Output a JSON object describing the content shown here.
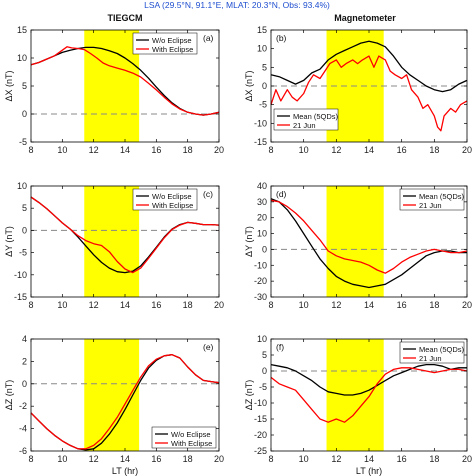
{
  "figure": {
    "suptitle": "LSA (29.5°N, 91.1°E, MLAT: 20.3°N, Obs: 93.4%)",
    "col_titles": [
      "TIEGCM",
      "Magnetometer"
    ],
    "eclipse_color": "#ffff00",
    "zero_line_color": "#888888"
  },
  "chart_data": [
    {
      "id": "a",
      "panel_label": "(a)",
      "type": "line",
      "title": "TIEGCM",
      "xlabel": "",
      "ylabel": "ΔX (nT)",
      "xlim": [
        8,
        20
      ],
      "ylim": [
        -5,
        15
      ],
      "xticks": [
        8,
        10,
        12,
        14,
        16,
        18,
        20
      ],
      "yticks": [
        -5,
        0,
        5,
        10,
        15
      ],
      "eclipse_band": [
        11.4,
        14.9
      ],
      "legend": "top-right",
      "series": [
        {
          "name": "W/o Eclipse",
          "color": "#000000",
          "x": [
            8,
            8.5,
            9,
            9.5,
            10,
            10.5,
            11,
            11.5,
            12,
            12.5,
            13,
            13.5,
            14,
            14.5,
            15,
            15.5,
            16,
            16.5,
            17,
            17.5,
            18,
            18.5,
            19,
            19.5,
            20
          ],
          "y": [
            8.8,
            9.2,
            9.8,
            10.4,
            11.0,
            11.4,
            11.7,
            11.9,
            11.9,
            11.7,
            11.3,
            10.8,
            10.0,
            9.0,
            7.8,
            6.4,
            4.8,
            3.3,
            2.0,
            1.0,
            0.3,
            0.0,
            -0.2,
            0.0,
            0.3
          ]
        },
        {
          "name": "With Eclipse",
          "color": "#ff0000",
          "x": [
            8,
            8.5,
            9,
            9.5,
            10,
            10.3,
            10.6,
            11,
            11.4,
            11.8,
            12.2,
            12.6,
            13,
            13.5,
            14,
            14.5,
            15,
            15.5,
            16,
            16.5,
            17,
            17.5,
            18,
            18.5,
            19,
            19.5,
            20
          ],
          "y": [
            8.8,
            9.2,
            9.8,
            10.4,
            11.4,
            12.0,
            11.8,
            11.7,
            11.5,
            10.8,
            10.0,
            9.1,
            8.6,
            8.2,
            7.8,
            7.3,
            6.6,
            5.5,
            4.3,
            3.0,
            1.8,
            0.9,
            0.3,
            0.0,
            -0.2,
            0.0,
            0.3
          ]
        }
      ]
    },
    {
      "id": "b",
      "panel_label": "(b)",
      "type": "line",
      "title": "Magnetometer",
      "xlabel": "",
      "ylabel": "ΔX (nT)",
      "xlim": [
        8,
        20
      ],
      "ylim": [
        -15,
        15
      ],
      "xticks": [
        8,
        10,
        12,
        14,
        16,
        18,
        20
      ],
      "yticks": [
        -15,
        -10,
        -5,
        0,
        5,
        10,
        15
      ],
      "eclipse_band": [
        11.4,
        14.9
      ],
      "legend": "lower-left",
      "series": [
        {
          "name": "Mean (5QDs)",
          "color": "#000000",
          "x": [
            8,
            8.5,
            9,
            9.5,
            10,
            10.5,
            11,
            11.5,
            12,
            12.5,
            13,
            13.5,
            14,
            14.5,
            15,
            15.5,
            16,
            16.5,
            17,
            17.5,
            18,
            18.5,
            19,
            19.5,
            20
          ],
          "y": [
            3,
            2.5,
            1.5,
            0.5,
            1.5,
            3.5,
            4.5,
            7,
            8.5,
            9.5,
            10.5,
            11.5,
            12,
            11.5,
            10.5,
            8,
            5,
            3,
            1.5,
            0,
            -1,
            -1.5,
            -1,
            0.5,
            1.5
          ]
        },
        {
          "name": "21 Jun",
          "color": "#ff0000",
          "x": [
            8,
            8.3,
            8.6,
            9,
            9.3,
            9.6,
            10,
            10.3,
            10.6,
            11,
            11.3,
            11.6,
            12,
            12.3,
            12.6,
            13,
            13.3,
            13.6,
            14,
            14.3,
            14.6,
            15,
            15.3,
            15.6,
            16,
            16.3,
            16.6,
            17,
            17.3,
            17.6,
            18,
            18.2,
            18.4,
            18.6,
            19,
            19.3,
            19.6,
            20
          ],
          "y": [
            -5,
            -1,
            -4,
            -1,
            -3,
            -4,
            -2,
            1,
            3,
            2,
            4,
            6,
            7,
            5,
            6,
            7,
            6,
            7,
            8,
            5,
            8,
            7,
            4,
            3,
            2,
            3,
            -1,
            -3,
            -6,
            -5,
            -8,
            -11,
            -12,
            -8,
            -6,
            -7,
            -5,
            -4
          ]
        }
      ]
    },
    {
      "id": "c",
      "panel_label": "(c)",
      "type": "line",
      "title": "",
      "xlabel": "",
      "ylabel": "ΔY (nT)",
      "xlim": [
        8,
        20
      ],
      "ylim": [
        -15,
        10
      ],
      "xticks": [
        8,
        10,
        12,
        14,
        16,
        18,
        20
      ],
      "yticks": [
        -15,
        -10,
        -5,
        0,
        5,
        10
      ],
      "eclipse_band": [
        11.4,
        14.9
      ],
      "legend": "top-right",
      "series": [
        {
          "name": "W/o Eclipse",
          "color": "#000000",
          "x": [
            8,
            8.5,
            9,
            9.5,
            10,
            10.5,
            11,
            11.5,
            12,
            12.5,
            13,
            13.5,
            14,
            14.5,
            15,
            15.5,
            16,
            16.5,
            17,
            17.5,
            18,
            18.5,
            19,
            19.5,
            20
          ],
          "y": [
            7.5,
            6.3,
            4.9,
            3.3,
            1.7,
            0.3,
            -1.5,
            -3.5,
            -5.5,
            -7.2,
            -8.5,
            -9.3,
            -9.5,
            -9.2,
            -8.0,
            -6.0,
            -3.8,
            -1.5,
            0.3,
            1.3,
            1.8,
            1.6,
            1.3,
            1.3,
            1.2
          ]
        },
        {
          "name": "With Eclipse",
          "color": "#ff0000",
          "x": [
            8,
            8.5,
            9,
            9.5,
            10,
            10.5,
            11,
            11.5,
            12,
            12.5,
            13,
            13.5,
            14,
            14.5,
            15,
            15.5,
            16,
            16.5,
            17,
            17.5,
            18,
            18.5,
            19,
            19.5,
            20
          ],
          "y": [
            7.5,
            6.3,
            4.9,
            3.3,
            1.7,
            0.3,
            -1.2,
            -2.3,
            -3.0,
            -3.4,
            -4.8,
            -7.0,
            -8.7,
            -9.5,
            -8.5,
            -6.3,
            -4.0,
            -1.7,
            0.2,
            1.2,
            1.8,
            1.6,
            1.3,
            1.3,
            1.2
          ]
        }
      ]
    },
    {
      "id": "d",
      "panel_label": "(d)",
      "type": "line",
      "title": "",
      "xlabel": "",
      "ylabel": "ΔY (nT)",
      "xlim": [
        8,
        20
      ],
      "ylim": [
        -30,
        40
      ],
      "xticks": [
        8,
        10,
        12,
        14,
        16,
        18,
        20
      ],
      "yticks": [
        -30,
        -20,
        -10,
        0,
        10,
        20,
        30,
        40
      ],
      "eclipse_band": [
        11.4,
        14.9
      ],
      "legend": "top-right",
      "series": [
        {
          "name": "Mean (5QDs)",
          "color": "#000000",
          "x": [
            8,
            8.5,
            9,
            9.5,
            10,
            10.5,
            11,
            11.5,
            12,
            12.5,
            13,
            13.5,
            14,
            14.5,
            15,
            15.5,
            16,
            16.5,
            17,
            17.5,
            18,
            18.5,
            19,
            19.5,
            20
          ],
          "y": [
            32,
            30,
            25,
            18,
            10,
            2,
            -6,
            -12,
            -17,
            -20,
            -22,
            -23,
            -24,
            -23,
            -22,
            -19,
            -16,
            -12,
            -8,
            -4,
            -2,
            -1,
            -1,
            -2,
            -2
          ]
        },
        {
          "name": "21 Jun",
          "color": "#ff0000",
          "x": [
            8,
            8.5,
            9,
            9.5,
            10,
            10.5,
            11,
            11.5,
            12,
            12.5,
            13,
            13.5,
            14,
            14.5,
            15,
            15.5,
            16,
            16.5,
            17,
            17.5,
            18,
            18.5,
            19,
            19.5,
            20
          ],
          "y": [
            31,
            30,
            27,
            23,
            18,
            12,
            6,
            -1,
            -4,
            -6,
            -7,
            -8,
            -10,
            -13,
            -15,
            -12,
            -8,
            -5,
            -3,
            -1,
            0,
            -1,
            -2,
            -2,
            -1
          ]
        }
      ]
    },
    {
      "id": "e",
      "panel_label": "(e)",
      "type": "line",
      "title": "",
      "xlabel": "LT (hr)",
      "ylabel": "ΔZ (nT)",
      "xlim": [
        8,
        20
      ],
      "ylim": [
        -6,
        4
      ],
      "xticks": [
        8,
        10,
        12,
        14,
        16,
        18,
        20
      ],
      "yticks": [
        -6,
        -4,
        -2,
        0,
        2,
        4
      ],
      "eclipse_band": [
        11.4,
        14.9
      ],
      "legend": "lower-right",
      "series": [
        {
          "name": "W/o Eclipse",
          "color": "#000000",
          "x": [
            8,
            8.5,
            9,
            9.5,
            10,
            10.5,
            11,
            11.5,
            12,
            12.5,
            13,
            13.5,
            14,
            14.5,
            15,
            15.5,
            16,
            16.5,
            17,
            17.5,
            18,
            18.5,
            19,
            19.5,
            20
          ],
          "y": [
            -2.6,
            -3.3,
            -4.0,
            -4.6,
            -5.1,
            -5.5,
            -5.8,
            -5.9,
            -5.8,
            -5.3,
            -4.5,
            -3.5,
            -2.3,
            -1.0,
            0.3,
            1.4,
            2.1,
            2.5,
            2.6,
            2.3,
            1.5,
            0.8,
            0.3,
            0.2,
            0.1
          ]
        },
        {
          "name": "With Eclipse",
          "color": "#ff0000",
          "x": [
            8,
            8.5,
            9,
            9.5,
            10,
            10.5,
            11,
            11.5,
            12,
            12.5,
            13,
            13.5,
            14,
            14.5,
            15,
            15.5,
            16,
            16.5,
            17,
            17.5,
            18,
            18.5,
            19,
            19.5,
            20
          ],
          "y": [
            -2.6,
            -3.3,
            -4.0,
            -4.6,
            -5.1,
            -5.5,
            -5.8,
            -5.8,
            -5.5,
            -4.9,
            -4.0,
            -3.0,
            -1.8,
            -0.6,
            0.6,
            1.6,
            2.2,
            2.5,
            2.6,
            2.3,
            1.5,
            0.8,
            0.3,
            0.2,
            0.1
          ]
        }
      ]
    },
    {
      "id": "f",
      "panel_label": "(f)",
      "type": "line",
      "title": "",
      "xlabel": "LT (hr)",
      "ylabel": "ΔZ (nT)",
      "xlim": [
        8,
        20
      ],
      "ylim": [
        -25,
        10
      ],
      "xticks": [
        8,
        10,
        12,
        14,
        16,
        18,
        20
      ],
      "yticks": [
        -25,
        -20,
        -15,
        -10,
        -5,
        0,
        5,
        10
      ],
      "eclipse_band": [
        11.4,
        14.9
      ],
      "legend": "top-right",
      "series": [
        {
          "name": "Mean (5QDs)",
          "color": "#000000",
          "x": [
            8,
            8.5,
            9,
            9.5,
            10,
            10.5,
            11,
            11.5,
            12,
            12.5,
            13,
            13.5,
            14,
            14.5,
            15,
            15.5,
            16,
            16.5,
            17,
            17.5,
            18,
            18.5,
            19,
            19.5,
            20
          ],
          "y": [
            2,
            1.5,
            1,
            0,
            -1.5,
            -3,
            -5,
            -6.5,
            -7,
            -7.5,
            -7.5,
            -7,
            -6,
            -4.5,
            -3,
            -1.5,
            -0.5,
            0.5,
            1.5,
            2,
            2,
            1.5,
            0.5,
            1,
            1
          ]
        },
        {
          "name": "21 Jun",
          "color": "#ff0000",
          "x": [
            8,
            8.5,
            9,
            9.5,
            10,
            10.5,
            11,
            11.5,
            12,
            12.5,
            13,
            13.5,
            14,
            14.5,
            15,
            15.5,
            16,
            16.5,
            17,
            17.5,
            18,
            18.5,
            19,
            19.5,
            20
          ],
          "y": [
            -2,
            -4,
            -5,
            -6,
            -9,
            -12,
            -15,
            -16,
            -15,
            -16,
            -14,
            -11,
            -8,
            -4,
            -1,
            0.5,
            1,
            1,
            0.5,
            0,
            -0.5,
            0,
            0.5,
            0.5,
            0
          ]
        }
      ]
    }
  ]
}
